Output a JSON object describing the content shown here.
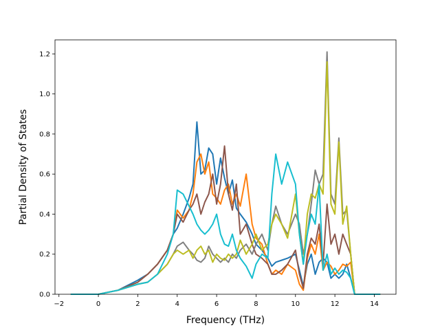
{
  "chart_data": {
    "type": "line",
    "xlabel": "Frequency (THz)",
    "ylabel": "Partial Density of States",
    "xlim": [
      -2.2,
      15.1
    ],
    "ylim": [
      0,
      1.27
    ],
    "xticks": [
      -2,
      0,
      2,
      4,
      6,
      8,
      10,
      12,
      14
    ],
    "yticks": [
      0.0,
      0.2,
      0.4,
      0.6,
      0.8,
      1.0,
      1.2
    ],
    "grid": false,
    "legend": "none",
    "series": [
      {
        "color": "#1f77b4",
        "x": [
          -1.4,
          0,
          1,
          2,
          2.5,
          3,
          3.5,
          3.8,
          4,
          4.3,
          4.6,
          4.8,
          5,
          5.2,
          5.4,
          5.6,
          5.8,
          6,
          6.2,
          6.4,
          6.6,
          6.8,
          7,
          7.2,
          7.5,
          7.8,
          8,
          8.3,
          8.6,
          8.8,
          9,
          9.3,
          9.6,
          10,
          10.2,
          10.4,
          10.6,
          10.8,
          11,
          11.2,
          11.4,
          11.6,
          11.8,
          12,
          12.2,
          12.4,
          12.6,
          12.8,
          13,
          13.2,
          14.3
        ],
        "y": [
          0,
          0,
          0.02,
          0.07,
          0.1,
          0.15,
          0.22,
          0.3,
          0.33,
          0.4,
          0.48,
          0.55,
          0.86,
          0.6,
          0.62,
          0.73,
          0.7,
          0.55,
          0.68,
          0.58,
          0.5,
          0.57,
          0.43,
          0.4,
          0.36,
          0.3,
          0.25,
          0.22,
          0.18,
          0.14,
          0.16,
          0.17,
          0.18,
          0.2,
          0.12,
          0.04,
          0.15,
          0.2,
          0.1,
          0.16,
          0.18,
          0.16,
          0.08,
          0.1,
          0.08,
          0.1,
          0.15,
          0.08,
          0,
          0,
          0
        ]
      },
      {
        "color": "#ff7f0e",
        "x": [
          -1.4,
          0,
          1,
          2,
          2.5,
          3,
          3.5,
          3.8,
          4,
          4.3,
          4.6,
          4.8,
          5,
          5.2,
          5.4,
          5.6,
          5.8,
          6,
          6.2,
          6.4,
          6.6,
          6.8,
          7,
          7.2,
          7.5,
          7.8,
          8,
          8.3,
          8.6,
          8.8,
          9,
          9.3,
          9.6,
          10,
          10.2,
          10.4,
          10.6,
          10.8,
          11,
          11.2,
          11.4,
          11.6,
          11.8,
          12,
          12.2,
          12.4,
          12.6,
          12.8,
          13,
          13.2,
          14.3
        ],
        "y": [
          0,
          0,
          0.02,
          0.06,
          0.1,
          0.15,
          0.22,
          0.3,
          0.42,
          0.38,
          0.42,
          0.5,
          0.66,
          0.7,
          0.6,
          0.66,
          0.5,
          0.48,
          0.45,
          0.52,
          0.55,
          0.45,
          0.5,
          0.44,
          0.6,
          0.35,
          0.28,
          0.25,
          0.15,
          0.1,
          0.12,
          0.1,
          0.15,
          0.12,
          0.05,
          0.02,
          0.18,
          0.25,
          0.2,
          0.3,
          0.12,
          0.16,
          0.14,
          0.1,
          0.12,
          0.15,
          0.14,
          0.16,
          0,
          0,
          0
        ]
      },
      {
        "color": "#8c564b",
        "x": [
          -1.4,
          0,
          1,
          2,
          2.5,
          3,
          3.5,
          3.8,
          4,
          4.3,
          4.6,
          4.8,
          5,
          5.2,
          5.4,
          5.6,
          5.8,
          6,
          6.2,
          6.4,
          6.6,
          6.8,
          7,
          7.2,
          7.5,
          7.8,
          8,
          8.3,
          8.6,
          8.8,
          9,
          9.3,
          9.6,
          10,
          10.2,
          10.4,
          10.6,
          10.8,
          11,
          11.2,
          11.4,
          11.6,
          11.8,
          12,
          12.2,
          12.4,
          12.6,
          12.8,
          13,
          13.2,
          14.3
        ],
        "y": [
          0,
          0,
          0.02,
          0.06,
          0.1,
          0.15,
          0.22,
          0.3,
          0.4,
          0.36,
          0.42,
          0.45,
          0.5,
          0.4,
          0.46,
          0.5,
          0.6,
          0.45,
          0.55,
          0.74,
          0.5,
          0.42,
          0.55,
          0.3,
          0.35,
          0.25,
          0.2,
          0.18,
          0.15,
          0.1,
          0.1,
          0.12,
          0.15,
          0.22,
          0.1,
          0.03,
          0.2,
          0.28,
          0.25,
          0.35,
          0.15,
          0.45,
          0.25,
          0.3,
          0.2,
          0.3,
          0.25,
          0.2,
          0,
          0,
          0
        ]
      },
      {
        "color": "#7f7f7f",
        "x": [
          -1.4,
          0,
          1,
          2,
          2.5,
          3,
          3.5,
          3.8,
          4,
          4.3,
          4.6,
          4.8,
          5,
          5.2,
          5.4,
          5.6,
          5.8,
          6,
          6.2,
          6.4,
          6.6,
          6.8,
          7,
          7.2,
          7.5,
          7.8,
          8,
          8.3,
          8.6,
          8.8,
          9,
          9.3,
          9.6,
          10,
          10.2,
          10.4,
          10.6,
          10.8,
          11,
          11.2,
          11.4,
          11.6,
          11.8,
          12,
          12.2,
          12.4,
          12.6,
          12.8,
          13,
          13.2,
          14.3
        ],
        "y": [
          0,
          0,
          0.02,
          0.05,
          0.06,
          0.1,
          0.15,
          0.2,
          0.24,
          0.26,
          0.22,
          0.2,
          0.17,
          0.16,
          0.18,
          0.24,
          0.2,
          0.18,
          0.16,
          0.18,
          0.16,
          0.2,
          0.18,
          0.22,
          0.25,
          0.2,
          0.25,
          0.3,
          0.22,
          0.35,
          0.44,
          0.35,
          0.3,
          0.4,
          0.35,
          0.2,
          0.3,
          0.45,
          0.62,
          0.55,
          0.6,
          1.21,
          0.5,
          0.45,
          0.78,
          0.4,
          0.42,
          0.2,
          0,
          0,
          0
        ]
      },
      {
        "color": "#bcbd22",
        "x": [
          -1.4,
          0,
          1,
          2,
          2.5,
          3,
          3.5,
          3.8,
          4,
          4.3,
          4.6,
          4.8,
          5,
          5.2,
          5.4,
          5.6,
          5.8,
          6,
          6.2,
          6.4,
          6.6,
          6.8,
          7,
          7.2,
          7.5,
          7.8,
          8,
          8.3,
          8.6,
          8.8,
          9,
          9.3,
          9.6,
          10,
          10.2,
          10.4,
          10.6,
          10.8,
          11,
          11.2,
          11.4,
          11.6,
          11.8,
          12,
          12.2,
          12.4,
          12.6,
          12.8,
          13,
          13.2,
          14.3
        ],
        "y": [
          0,
          0,
          0.02,
          0.05,
          0.06,
          0.1,
          0.15,
          0.2,
          0.22,
          0.2,
          0.22,
          0.18,
          0.22,
          0.24,
          0.2,
          0.22,
          0.16,
          0.2,
          0.18,
          0.17,
          0.2,
          0.18,
          0.2,
          0.27,
          0.2,
          0.25,
          0.3,
          0.22,
          0.25,
          0.35,
          0.4,
          0.35,
          0.28,
          0.5,
          0.3,
          0.15,
          0.4,
          0.5,
          0.48,
          0.55,
          0.5,
          1.16,
          0.45,
          0.4,
          0.76,
          0.35,
          0.44,
          0.2,
          0,
          0,
          0
        ]
      },
      {
        "color": "#17becf",
        "x": [
          -1.4,
          0,
          1,
          2,
          2.5,
          3,
          3.5,
          3.8,
          4,
          4.3,
          4.6,
          4.8,
          5,
          5.2,
          5.4,
          5.6,
          5.8,
          6,
          6.2,
          6.4,
          6.6,
          6.8,
          7,
          7.2,
          7.5,
          7.8,
          8,
          8.3,
          8.6,
          8.8,
          9,
          9.3,
          9.6,
          10,
          10.2,
          10.4,
          10.6,
          10.8,
          11,
          11.2,
          11.4,
          11.6,
          11.8,
          12,
          12.2,
          12.4,
          12.6,
          12.8,
          13,
          13.2,
          14.3
        ],
        "y": [
          0,
          0,
          0.02,
          0.05,
          0.06,
          0.1,
          0.2,
          0.3,
          0.52,
          0.5,
          0.44,
          0.4,
          0.35,
          0.32,
          0.3,
          0.32,
          0.35,
          0.4,
          0.3,
          0.25,
          0.24,
          0.3,
          0.22,
          0.18,
          0.14,
          0.08,
          0.15,
          0.2,
          0.18,
          0.5,
          0.7,
          0.55,
          0.66,
          0.55,
          0.3,
          0.15,
          0.3,
          0.4,
          0.35,
          0.55,
          0.12,
          0.2,
          0.1,
          0.13,
          0.1,
          0.12,
          0.11,
          0.08,
          0,
          0,
          0
        ]
      }
    ]
  }
}
